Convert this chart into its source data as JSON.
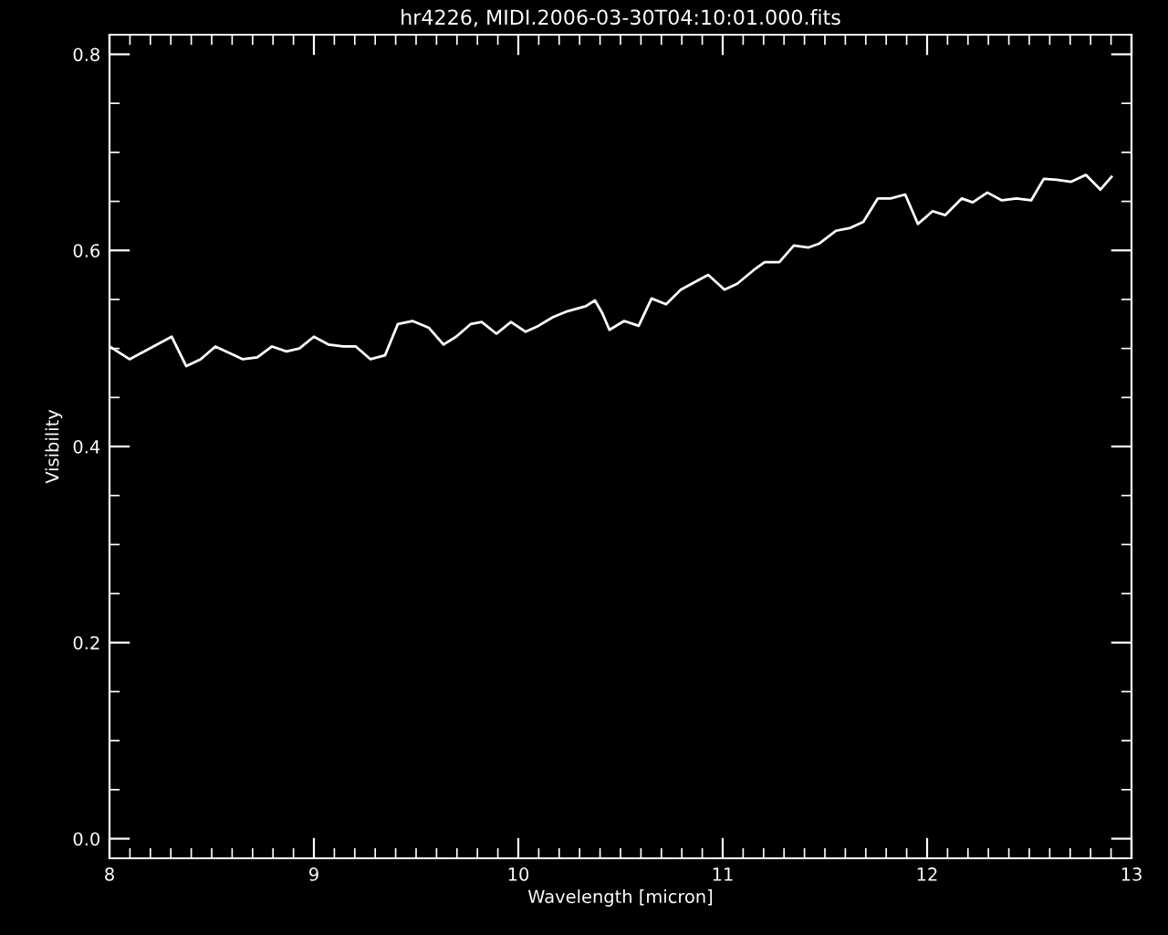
{
  "chart_data": {
    "type": "line",
    "title": "hr4226, MIDI.2006-03-30T04:10:01.000.fits",
    "xlabel": "Wavelength [micron]",
    "ylabel": "Visibility",
    "x": [
      8.009,
      8.098,
      8.304,
      8.375,
      8.446,
      8.518,
      8.652,
      8.723,
      8.795,
      8.866,
      8.929,
      9.0,
      9.071,
      9.143,
      9.205,
      9.277,
      9.348,
      9.411,
      9.482,
      9.563,
      9.634,
      9.696,
      9.768,
      9.821,
      9.893,
      9.964,
      10.036,
      10.098,
      10.17,
      10.241,
      10.33,
      10.375,
      10.411,
      10.446,
      10.518,
      10.589,
      10.652,
      10.723,
      10.795,
      10.857,
      10.929,
      11.009,
      11.071,
      11.152,
      11.205,
      11.277,
      11.348,
      11.42,
      11.473,
      11.554,
      11.625,
      11.688,
      11.759,
      11.821,
      11.893,
      11.955,
      12.027,
      12.089,
      12.17,
      12.223,
      12.295,
      12.366,
      12.438,
      12.509,
      12.571,
      12.634,
      12.705,
      12.777,
      12.848,
      12.902
    ],
    "series": [
      {
        "color": "#ffffff",
        "values": [
          0.501,
          0.489,
          0.512,
          0.482,
          0.489,
          0.502,
          0.489,
          0.491,
          0.502,
          0.497,
          0.5,
          0.512,
          0.504,
          0.502,
          0.502,
          0.489,
          0.493,
          0.525,
          0.528,
          0.521,
          0.504,
          0.512,
          0.525,
          0.527,
          0.515,
          0.527,
          0.517,
          0.523,
          0.532,
          0.538,
          0.543,
          0.549,
          0.536,
          0.519,
          0.528,
          0.523,
          0.551,
          0.545,
          0.56,
          0.567,
          0.575,
          0.56,
          0.566,
          0.58,
          0.588,
          0.588,
          0.605,
          0.603,
          0.607,
          0.62,
          0.623,
          0.629,
          0.653,
          0.653,
          0.657,
          0.627,
          0.64,
          0.636,
          0.653,
          0.649,
          0.659,
          0.651,
          0.653,
          0.651,
          0.673,
          0.672,
          0.67,
          0.677,
          0.662,
          0.675
        ]
      }
    ],
    "xlim": [
      8,
      13
    ],
    "xticks": [
      8,
      9,
      10,
      11,
      12,
      13
    ],
    "ylim": [
      -0.02,
      0.82
    ],
    "yticks": [
      {
        "value": 0,
        "label": "0.0"
      },
      {
        "value": 0.2,
        "label": "0.2"
      },
      {
        "value": 0.4,
        "label": "0.4"
      },
      {
        "value": 0.6,
        "label": "0.6"
      },
      {
        "value": 0.8,
        "label": "0.8"
      }
    ],
    "grid": false,
    "marker": "none",
    "line_style": "solid"
  }
}
